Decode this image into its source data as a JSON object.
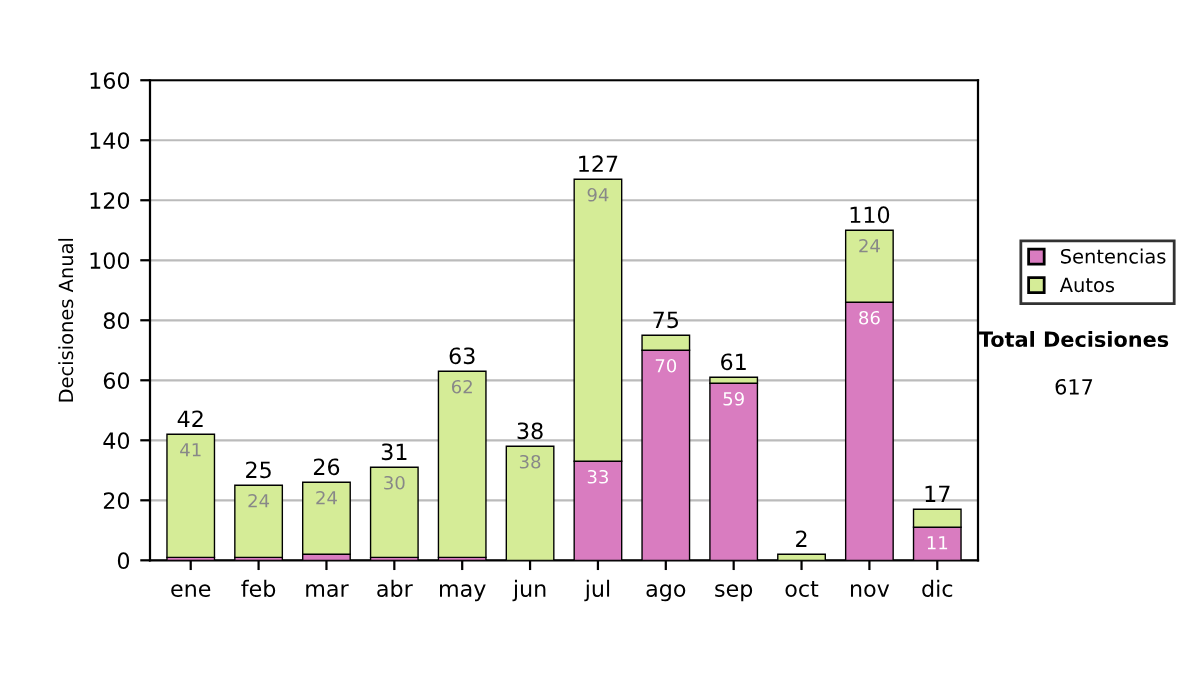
{
  "chart_data": {
    "type": "bar",
    "stacked": true,
    "ylabel": "Decisiones Anual",
    "categories": [
      "ene",
      "feb",
      "mar",
      "abr",
      "may",
      "jun",
      "jul",
      "ago",
      "sep",
      "oct",
      "nov",
      "dic"
    ],
    "series": [
      {
        "name": "Sentencias",
        "color": "#d97cc0",
        "values": [
          1,
          1,
          2,
          1,
          1,
          0,
          33,
          70,
          59,
          0,
          86,
          11
        ],
        "value_labels": [
          null,
          null,
          null,
          null,
          null,
          null,
          "33",
          "70",
          "59",
          null,
          "86",
          "11"
        ]
      },
      {
        "name": "Autos",
        "color": "#d5ec97",
        "values": [
          41,
          24,
          24,
          30,
          62,
          38,
          94,
          5,
          2,
          2,
          24,
          6
        ],
        "value_labels": [
          "41",
          "24",
          "24",
          "30",
          "62",
          "38",
          "94",
          null,
          null,
          null,
          "24",
          null
        ]
      }
    ],
    "totals": [
      "42",
      "25",
      "26",
      "31",
      "63",
      "38",
      "127",
      "75",
      "61",
      "2",
      "110",
      "17"
    ],
    "ylim": [
      0,
      160
    ],
    "yticks": [
      0,
      20,
      40,
      60,
      80,
      100,
      120,
      140,
      160
    ],
    "grid": "y",
    "legend": "right",
    "annotations": [
      "Total Decisiones",
      "617"
    ]
  }
}
